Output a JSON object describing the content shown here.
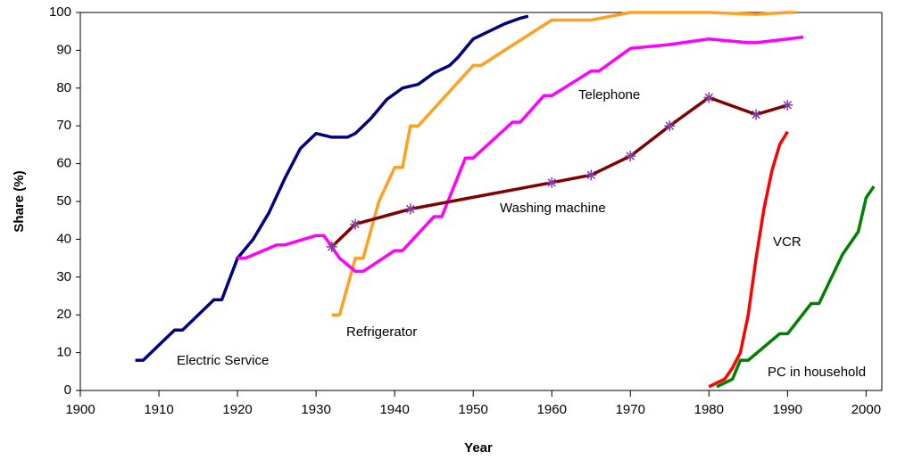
{
  "chart_data": {
    "type": "line",
    "xlabel": "Year",
    "ylabel": "Share (%)",
    "xlim": [
      1900,
      2002
    ],
    "ylim": [
      0,
      100
    ],
    "xticks": [
      1900,
      1910,
      1920,
      1930,
      1940,
      1950,
      1960,
      1970,
      1980,
      1990,
      2000
    ],
    "yticks": [
      0,
      10,
      20,
      30,
      40,
      50,
      60,
      70,
      80,
      90,
      100
    ],
    "grid": false,
    "series": [
      {
        "name": "Electric Service",
        "color": "#000080",
        "x": [
          1907,
          1908,
          1912,
          1913,
          1917,
          1918,
          1920,
          1922,
          1924,
          1926,
          1928,
          1930,
          1932,
          1934,
          1935,
          1937,
          1939,
          1941,
          1943,
          1945,
          1947,
          1948,
          1950,
          1952,
          1954,
          1956,
          1957
        ],
        "values": [
          8,
          8,
          16,
          16,
          24,
          24,
          35,
          40,
          47,
          56,
          64,
          68,
          67,
          67,
          68,
          72,
          77,
          80,
          81,
          84,
          86,
          88,
          93,
          95,
          97,
          98.5,
          99
        ]
      },
      {
        "name": "Refrigerator",
        "color": "#ffa020",
        "x": [
          1932,
          1933,
          1935,
          1936,
          1938,
          1940,
          1941,
          1942,
          1943,
          1950,
          1951,
          1960,
          1965,
          1970,
          1980,
          1986,
          1990,
          1991
        ],
        "values": [
          20,
          20,
          35,
          35,
          50,
          59,
          59,
          70,
          70,
          86,
          86,
          98,
          98,
          100,
          100,
          99.5,
          100,
          100
        ]
      },
      {
        "name": "Telephone",
        "color": "#ff00ff",
        "x": [
          1920,
          1921,
          1925,
          1926,
          1930,
          1931,
          1933,
          1935,
          1936,
          1940,
          1941,
          1945,
          1946,
          1949,
          1950,
          1955,
          1956,
          1959,
          1960,
          1965,
          1966,
          1970,
          1975,
          1980,
          1985,
          1986,
          1990,
          1992
        ],
        "values": [
          35,
          35,
          38.5,
          38.5,
          41,
          41,
          35,
          31.5,
          31.5,
          37,
          37,
          46,
          46,
          61.5,
          61.5,
          71,
          71,
          78,
          78,
          84.5,
          84.5,
          90.5,
          91.5,
          93,
          92,
          92,
          93,
          93.5
        ]
      },
      {
        "name": "Washing machine",
        "color": "#800000",
        "marker": "asterisk",
        "marker_color": "#8040a0",
        "x": [
          1932,
          1935,
          1942,
          1960,
          1965,
          1970,
          1975,
          1980,
          1986,
          1990
        ],
        "values": [
          38,
          44,
          48,
          55,
          57,
          62,
          70,
          77.5,
          73,
          75.5
        ]
      },
      {
        "name": "VCR",
        "color": "#ff0000",
        "x": [
          1980,
          1981,
          1982,
          1983,
          1984,
          1985,
          1986,
          1987,
          1988,
          1989,
          1990
        ],
        "values": [
          1,
          2,
          3,
          6,
          10,
          20,
          35,
          48,
          58,
          65,
          68.5
        ]
      },
      {
        "name": "PC in household",
        "color": "#008000",
        "x": [
          1981,
          1983,
          1984,
          1985,
          1989,
          1990,
          1993,
          1994,
          1997,
          1999,
          2000,
          2001
        ],
        "values": [
          1,
          3,
          8,
          8,
          15,
          15,
          23,
          23,
          36,
          42,
          51,
          54
        ]
      }
    ]
  }
}
